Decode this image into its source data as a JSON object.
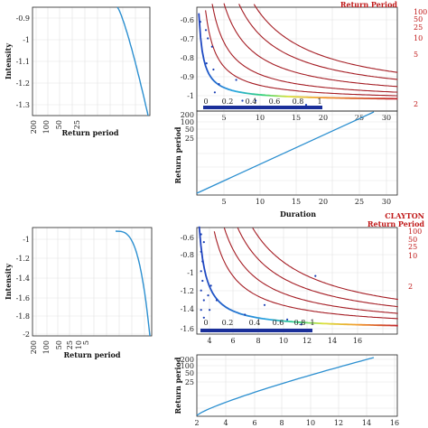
{
  "chart_data": [
    {
      "id": "top-left",
      "type": "line",
      "ylabel": "Intensity",
      "xlabel": "Return period",
      "xticks": [
        "200",
        "100",
        "50",
        "25"
      ],
      "yticks": [
        "-0.9",
        "-1",
        "-1.1",
        "-1.2",
        "-1.3"
      ],
      "ylim": [
        -1.38,
        -0.85
      ]
    },
    {
      "id": "top-right",
      "type": "line",
      "title": "Return Period",
      "xticks": [
        "5",
        "10",
        "15",
        "20",
        "25",
        "30"
      ],
      "yticks": [
        "-0.6",
        "-0.7",
        "-0.8",
        "-0.9",
        "-1"
      ],
      "inset_ticks": [
        "0",
        "0.2",
        "0.4",
        "0.6",
        "0.8",
        "1"
      ],
      "xlim": [
        3,
        32
      ],
      "ylim": [
        -1.05,
        -0.55
      ],
      "contours": [
        {
          "name": "100",
          "k": 4
        },
        {
          "name": "50",
          "k": 3
        },
        {
          "name": "25",
          "k": 2
        },
        {
          "name": "10",
          "k": 1.2
        },
        {
          "name": "5",
          "k": 0.7
        },
        {
          "name": "2",
          "k": 0.27
        }
      ],
      "points": [
        [
          3.5,
          -0.62
        ],
        [
          4.3,
          -0.66
        ],
        [
          4.6,
          -0.7
        ],
        [
          5.2,
          -0.74
        ],
        [
          4.4,
          -0.82
        ],
        [
          5.4,
          -0.85
        ],
        [
          6.2,
          -0.92
        ],
        [
          5.6,
          -0.96
        ],
        [
          8.7,
          -0.9
        ],
        [
          9.6,
          -1.0
        ],
        [
          11.5,
          -1.0
        ],
        [
          18.8,
          -1.02
        ]
      ]
    },
    {
      "id": "mid-right",
      "type": "line",
      "ylabel": "Return period",
      "xlabel": "Duration",
      "xticks": [
        "5",
        "10",
        "15",
        "20",
        "25",
        "30"
      ],
      "yticks": [
        "200",
        "100",
        "50",
        "25"
      ],
      "xlim": [
        3,
        32
      ],
      "x": [
        3,
        28
      ],
      "y": [
        0,
        1.05
      ]
    },
    {
      "id": "bottom-left",
      "type": "line",
      "ylabel": "Intensity",
      "xlabel": "Return period",
      "xticks": [
        "200",
        "100",
        "50",
        "25",
        "10",
        "5"
      ],
      "yticks": [
        "-1",
        "-1.2",
        "-1.4",
        "-1.6",
        "-1.8",
        "-2"
      ],
      "ylim": [
        -2.0,
        -0.9
      ]
    },
    {
      "id": "bottom-right",
      "type": "line",
      "title": "CLAYTON\nReturn Period",
      "xticks": [
        "4",
        "6",
        "8",
        "10",
        "12",
        "14",
        "16"
      ],
      "yticks": [
        "-0.6",
        "-0.8",
        "-1",
        "-1.2",
        "-1.4",
        "-1.6"
      ],
      "inset_ticks": [
        "0",
        "0.2",
        "0.4",
        "0.6",
        "0.8",
        "1"
      ],
      "xlim": [
        2.8,
        17
      ],
      "ylim": [
        -1.65,
        -0.55
      ],
      "contours": [
        {
          "name": "100",
          "k": 4.5
        },
        {
          "name": "50",
          "k": 3.4
        },
        {
          "name": "25",
          "k": 2.4
        },
        {
          "name": "10",
          "k": 1.6
        },
        {
          "name": "2",
          "k": 0.55
        }
      ],
      "points": [
        [
          3.1,
          -0.62
        ],
        [
          3.3,
          -0.7
        ],
        [
          3.1,
          -0.8
        ],
        [
          3.2,
          -0.9
        ],
        [
          3.1,
          -1.0
        ],
        [
          3.2,
          -1.1
        ],
        [
          3.1,
          -1.2
        ],
        [
          3.3,
          -1.3
        ],
        [
          3.1,
          -1.4
        ],
        [
          3.3,
          -1.48
        ],
        [
          3.8,
          -1.15
        ],
        [
          3.6,
          -1.25
        ],
        [
          3.7,
          -1.4
        ],
        [
          4.2,
          -1.3
        ],
        [
          6.2,
          -1.45
        ],
        [
          7.6,
          -1.35
        ],
        [
          9.2,
          -1.5
        ],
        [
          10.2,
          -1.55
        ],
        [
          11.2,
          -1.05
        ]
      ]
    },
    {
      "id": "bottom-right-lower",
      "type": "line",
      "ylabel": "Return period",
      "xticks": [
        "2",
        "4",
        "6",
        "8",
        "10",
        "12",
        "14",
        "16"
      ],
      "yticks": [
        "200",
        "100",
        "50",
        "25"
      ],
      "xlim": [
        2,
        17
      ]
    }
  ]
}
